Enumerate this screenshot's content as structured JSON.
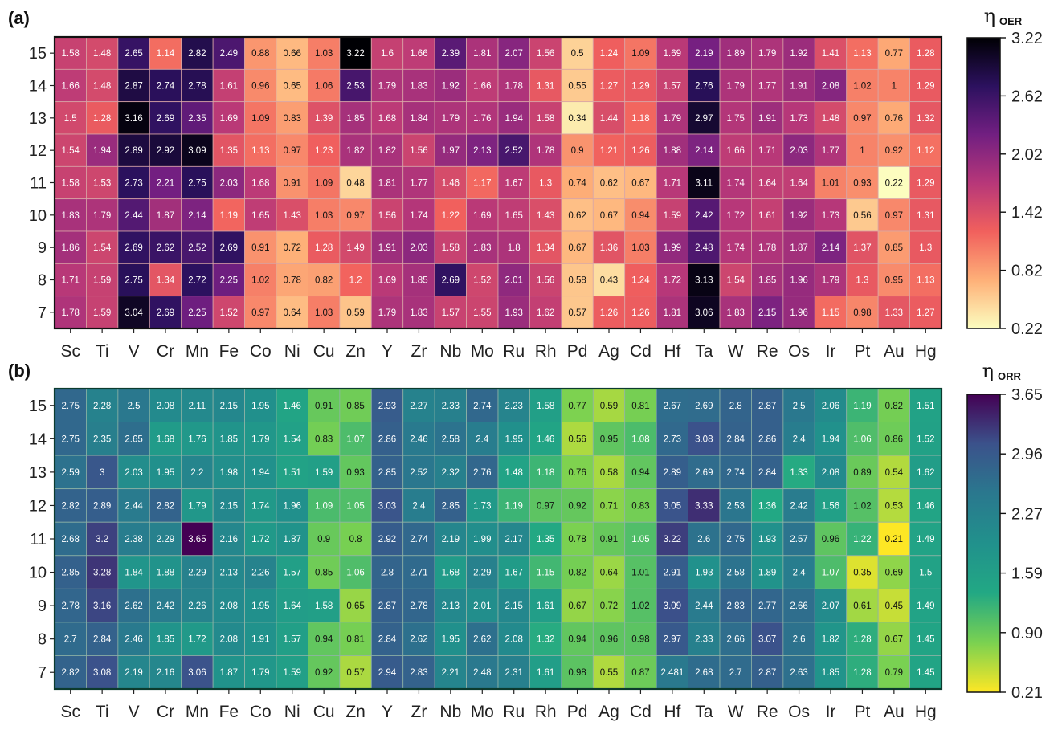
{
  "chart_data": [
    {
      "type": "heatmap",
      "panel_label": "(a)",
      "colorbar_symbol": "η",
      "colorbar_subscript": "OER",
      "colormap": "magma_r",
      "colorbar_ticks": [
        "3.22",
        "2.62",
        "2.02",
        "1.42",
        "0.82",
        "0.22"
      ],
      "vmin": 0.22,
      "vmax": 3.22,
      "columns": [
        "Sc",
        "Ti",
        "V",
        "Cr",
        "Mn",
        "Fe",
        "Co",
        "Ni",
        "Cu",
        "Zn",
        "Y",
        "Zr",
        "Nb",
        "Mo",
        "Ru",
        "Rh",
        "Pd",
        "Ag",
        "Cd",
        "Hf",
        "Ta",
        "W",
        "Re",
        "Os",
        "Ir",
        "Pt",
        "Au",
        "Hg"
      ],
      "rows": [
        "15",
        "14",
        "13",
        "12",
        "11",
        "10",
        "9",
        "8",
        "7"
      ],
      "values": [
        [
          "1.58",
          "1.48",
          "2.65",
          "1.14",
          "2.82",
          "2.49",
          "0.88",
          "0.66",
          "1.03",
          "3.22",
          "1.6",
          "1.66",
          "2.39",
          "1.81",
          "2.07",
          "1.56",
          "0.5",
          "1.24",
          "1.09",
          "1.69",
          "2.19",
          "1.89",
          "1.79",
          "1.92",
          "1.41",
          "1.13",
          "0.77",
          "1.28"
        ],
        [
          "1.66",
          "1.48",
          "2.87",
          "2.74",
          "2.78",
          "1.61",
          "0.96",
          "0.65",
          "1.06",
          "2.53",
          "1.79",
          "1.83",
          "1.92",
          "1.66",
          "1.78",
          "1.31",
          "0.55",
          "1.27",
          "1.29",
          "1.57",
          "2.76",
          "1.79",
          "1.77",
          "1.91",
          "2.08",
          "1.02",
          "1",
          "1.29"
        ],
        [
          "1.5",
          "1.28",
          "3.16",
          "2.69",
          "2.35",
          "1.69",
          "1.09",
          "0.83",
          "1.39",
          "1.85",
          "1.68",
          "1.84",
          "1.79",
          "1.76",
          "1.94",
          "1.58",
          "0.34",
          "1.44",
          "1.18",
          "1.79",
          "2.97",
          "1.75",
          "1.91",
          "1.73",
          "1.48",
          "0.97",
          "0.76",
          "1.32"
        ],
        [
          "1.54",
          "1.94",
          "2.89",
          "2.92",
          "3.09",
          "1.35",
          "1.13",
          "0.97",
          "1.23",
          "1.82",
          "1.82",
          "1.56",
          "1.97",
          "2.13",
          "2.52",
          "1.78",
          "0.9",
          "1.21",
          "1.26",
          "1.88",
          "2.14",
          "1.66",
          "1.71",
          "2.03",
          "1.77",
          "1",
          "0.92",
          "1.12"
        ],
        [
          "1.58",
          "1.53",
          "2.73",
          "2.21",
          "2.75",
          "2.03",
          "1.68",
          "0.91",
          "1.09",
          "0.48",
          "1.81",
          "1.77",
          "1.46",
          "1.17",
          "1.67",
          "1.3",
          "0.74",
          "0.62",
          "0.67",
          "1.71",
          "3.11",
          "1.74",
          "1.64",
          "1.64",
          "1.01",
          "0.93",
          "0.22",
          "1.29"
        ],
        [
          "1.83",
          "1.79",
          "2.44",
          "1.87",
          "2.14",
          "1.19",
          "1.65",
          "1.43",
          "1.03",
          "0.97",
          "1.56",
          "1.74",
          "1.22",
          "1.69",
          "1.65",
          "1.43",
          "0.62",
          "0.67",
          "0.94",
          "1.59",
          "2.42",
          "1.72",
          "1.61",
          "1.92",
          "1.73",
          "0.56",
          "0.97",
          "1.31"
        ],
        [
          "1.86",
          "1.54",
          "2.69",
          "2.62",
          "2.52",
          "2.69",
          "0.91",
          "0.72",
          "1.28",
          "1.49",
          "1.91",
          "2.03",
          "1.58",
          "1.83",
          "1.8",
          "1.34",
          "0.67",
          "1.36",
          "1.03",
          "1.99",
          "2.48",
          "1.74",
          "1.78",
          "1.87",
          "2.14",
          "1.37",
          "0.85",
          "1.3"
        ],
        [
          "1.71",
          "1.59",
          "2.75",
          "1.34",
          "2.72",
          "2.25",
          "1.02",
          "0.78",
          "0.82",
          "1.2",
          "1.69",
          "1.85",
          "2.69",
          "1.52",
          "2.01",
          "1.56",
          "0.58",
          "0.43",
          "1.24",
          "1.72",
          "3.13",
          "1.54",
          "1.85",
          "1.96",
          "1.79",
          "1.3",
          "0.95",
          "1.13"
        ],
        [
          "1.78",
          "1.59",
          "3.04",
          "2.69",
          "2.25",
          "1.52",
          "0.97",
          "0.64",
          "1.03",
          "0.59",
          "1.79",
          "1.83",
          "1.57",
          "1.55",
          "1.93",
          "1.62",
          "0.57",
          "1.26",
          "1.26",
          "1.81",
          "3.06",
          "1.83",
          "2.15",
          "1.96",
          "1.15",
          "0.98",
          "1.33",
          "1.27"
        ]
      ]
    },
    {
      "type": "heatmap",
      "panel_label": "(b)",
      "colorbar_symbol": "η",
      "colorbar_subscript": "ORR",
      "colormap": "viridis_r",
      "colorbar_ticks": [
        "3.65",
        "2.96",
        "2.27",
        "1.59",
        "0.90",
        "0.21"
      ],
      "vmin": 0.21,
      "vmax": 3.65,
      "columns": [
        "Sc",
        "Ti",
        "V",
        "Cr",
        "Mn",
        "Fe",
        "Co",
        "Ni",
        "Cu",
        "Zn",
        "Y",
        "Zr",
        "Nb",
        "Mo",
        "Ru",
        "Rh",
        "Pd",
        "Ag",
        "Cd",
        "Hf",
        "Ta",
        "W",
        "Re",
        "Os",
        "Ir",
        "Pt",
        "Au",
        "Hg"
      ],
      "rows": [
        "15",
        "14",
        "13",
        "12",
        "11",
        "10",
        "9",
        "8",
        "7"
      ],
      "values": [
        [
          "2.75",
          "2.28",
          "2.5",
          "2.08",
          "2.11",
          "2.15",
          "1.95",
          "1.46",
          "0.91",
          "0.85",
          "2.93",
          "2.27",
          "2.33",
          "2.74",
          "2.23",
          "1.58",
          "0.77",
          "0.59",
          "0.81",
          "2.67",
          "2.69",
          "2.8",
          "2.87",
          "2.5",
          "2.06",
          "1.19",
          "0.82",
          "1.51"
        ],
        [
          "2.75",
          "2.35",
          "2.65",
          "1.68",
          "1.76",
          "1.85",
          "1.79",
          "1.54",
          "0.83",
          "1.07",
          "2.86",
          "2.46",
          "2.58",
          "2.4",
          "1.95",
          "1.46",
          "0.56",
          "0.95",
          "1.08",
          "2.73",
          "3.08",
          "2.84",
          "2.86",
          "2.4",
          "1.94",
          "1.06",
          "0.86",
          "1.52"
        ],
        [
          "2.59",
          "3",
          "2.03",
          "1.95",
          "2.2",
          "1.98",
          "1.94",
          "1.51",
          "1.59",
          "0.93",
          "2.85",
          "2.52",
          "2.32",
          "2.76",
          "1.48",
          "1.18",
          "0.76",
          "0.58",
          "0.94",
          "2.89",
          "2.69",
          "2.74",
          "2.84",
          "1.33",
          "2.08",
          "0.89",
          "0.54",
          "1.62"
        ],
        [
          "2.82",
          "2.89",
          "2.44",
          "2.82",
          "1.79",
          "2.15",
          "1.74",
          "1.96",
          "1.09",
          "1.05",
          "3.03",
          "2.4",
          "2.85",
          "1.73",
          "1.19",
          "0.97",
          "0.92",
          "0.71",
          "0.83",
          "3.05",
          "3.33",
          "2.53",
          "1.36",
          "2.42",
          "1.56",
          "1.02",
          "0.53",
          "1.46"
        ],
        [
          "2.68",
          "3.2",
          "2.38",
          "2.29",
          "3.65",
          "2.16",
          "1.72",
          "1.87",
          "0.9",
          "0.8",
          "2.92",
          "2.74",
          "2.19",
          "1.99",
          "2.17",
          "1.35",
          "0.78",
          "0.91",
          "1.05",
          "3.22",
          "2.6",
          "2.75",
          "1.93",
          "2.57",
          "0.96",
          "1.22",
          "0.21",
          "1.49"
        ],
        [
          "2.85",
          "3.28",
          "1.84",
          "1.88",
          "2.29",
          "2.13",
          "2.26",
          "1.57",
          "0.85",
          "1.06",
          "2.8",
          "2.71",
          "1.68",
          "2.29",
          "1.67",
          "1.15",
          "0.82",
          "0.64",
          "1.01",
          "2.91",
          "1.93",
          "2.58",
          "1.89",
          "2.4",
          "1.07",
          "0.35",
          "0.69",
          "1.5"
        ],
        [
          "2.78",
          "3.16",
          "2.62",
          "2.42",
          "2.26",
          "2.08",
          "1.95",
          "1.64",
          "1.58",
          "0.65",
          "2.87",
          "2.78",
          "2.13",
          "2.01",
          "2.15",
          "1.61",
          "0.67",
          "0.72",
          "1.02",
          "3.09",
          "2.44",
          "2.83",
          "2.77",
          "2.66",
          "2.07",
          "0.61",
          "0.45",
          "1.49"
        ],
        [
          "2.7",
          "2.84",
          "2.46",
          "1.85",
          "1.72",
          "2.08",
          "1.91",
          "1.57",
          "0.94",
          "0.81",
          "2.84",
          "2.62",
          "1.95",
          "2.62",
          "2.08",
          "1.32",
          "0.94",
          "0.96",
          "0.98",
          "2.97",
          "2.33",
          "2.66",
          "3.07",
          "2.6",
          "1.82",
          "1.28",
          "0.67",
          "1.45"
        ],
        [
          "2.82",
          "3.08",
          "2.19",
          "2.16",
          "3.06",
          "1.87",
          "1.79",
          "1.59",
          "0.92",
          "0.57",
          "2.94",
          "2.83",
          "2.21",
          "2.48",
          "2.31",
          "1.61",
          "0.98",
          "0.55",
          "0.87",
          "2.481",
          "2.68",
          "2.7",
          "2.87",
          "2.63",
          "1.85",
          "1.28",
          "0.79",
          "1.45"
        ]
      ]
    }
  ]
}
